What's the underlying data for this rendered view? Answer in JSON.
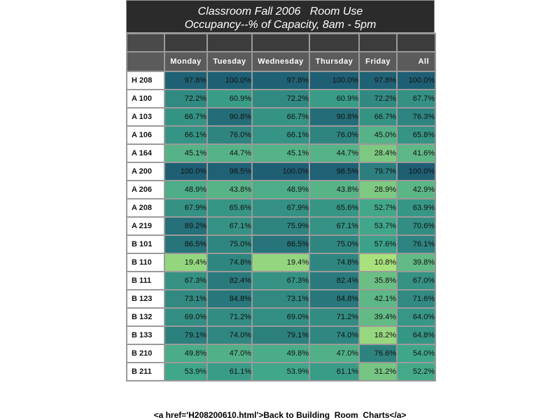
{
  "title": {
    "line1": "Classroom Fall 2006   Room Use",
    "line2": "Occupancy--% of Capacity, 8am - 5pm"
  },
  "footer_link_text": "<a href='H208200610.html'>Back to Building  Room  Charts</a>",
  "chart_data": {
    "type": "heatmap",
    "title": "Classroom Fall 2006   Room Use",
    "subtitle": "Occupancy--% of Capacity, 8am - 5pm",
    "columns": [
      "Monday",
      "Tuesday",
      "Wednesday",
      "Thursday",
      "Friday",
      "All"
    ],
    "rows": [
      {
        "room": "H 208",
        "values": [
          97.8,
          100.0,
          97.8,
          100.0,
          97.8,
          100.0
        ]
      },
      {
        "room": "A 100",
        "values": [
          72.2,
          60.9,
          72.2,
          60.9,
          72.2,
          67.7
        ]
      },
      {
        "room": "A 103",
        "values": [
          66.7,
          90.8,
          66.7,
          90.8,
          66.7,
          76.3
        ]
      },
      {
        "room": "A 106",
        "values": [
          66.1,
          76.0,
          66.1,
          76.0,
          45.0,
          65.8
        ]
      },
      {
        "room": "A 164",
        "values": [
          45.1,
          44.7,
          45.1,
          44.7,
          28.4,
          41.6
        ]
      },
      {
        "room": "A 200",
        "values": [
          100.0,
          98.5,
          100.0,
          98.5,
          79.7,
          100.0
        ]
      },
      {
        "room": "A 206",
        "values": [
          48.9,
          43.8,
          48.9,
          43.8,
          28.9,
          42.9
        ]
      },
      {
        "room": "A 208",
        "values": [
          67.9,
          65.6,
          67.9,
          65.6,
          52.7,
          63.9
        ]
      },
      {
        "room": "A 219",
        "values": [
          89.2,
          67.1,
          75.9,
          67.1,
          53.7,
          70.6
        ]
      },
      {
        "room": "B 101",
        "values": [
          86.5,
          75.0,
          86.5,
          75.0,
          57.6,
          76.1
        ]
      },
      {
        "room": "B 110",
        "values": [
          19.4,
          74.8,
          19.4,
          74.8,
          10.8,
          39.8
        ]
      },
      {
        "room": "B 111",
        "values": [
          67.3,
          82.4,
          67.3,
          82.4,
          35.8,
          67.0
        ]
      },
      {
        "room": "B 123",
        "values": [
          73.1,
          84.8,
          73.1,
          84.8,
          42.1,
          71.6
        ]
      },
      {
        "room": "B 132",
        "values": [
          69.0,
          71.2,
          69.0,
          71.2,
          39.4,
          64.0
        ]
      },
      {
        "room": "B 133",
        "values": [
          79.1,
          74.0,
          79.1,
          74.0,
          18.2,
          64.8
        ]
      },
      {
        "room": "B 210",
        "values": [
          49.8,
          47.0,
          49.8,
          47.0,
          76.6,
          54.0
        ]
      },
      {
        "room": "B 211",
        "values": [
          53.9,
          61.1,
          53.9,
          61.1,
          31.2,
          52.2
        ]
      }
    ],
    "value_suffix": "%",
    "color_scale": {
      "low": "#c4f07a",
      "mid": "#3da58a",
      "high": "#1e5f74"
    }
  }
}
